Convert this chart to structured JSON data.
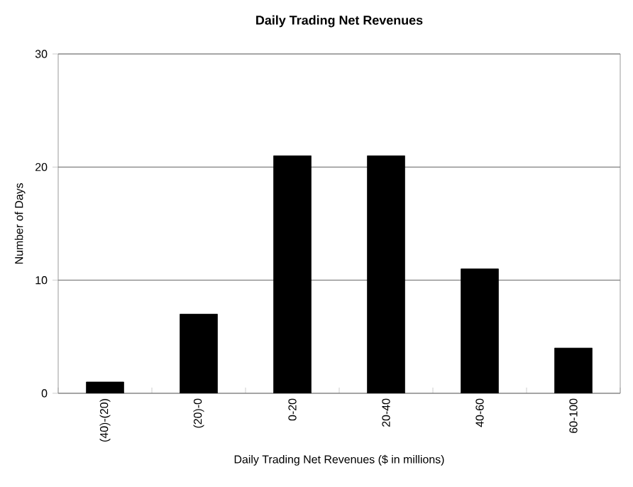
{
  "chart_data": {
    "type": "bar",
    "title": "Daily Trading Net Revenues",
    "xlabel": "Daily Trading Net Revenues ($ in millions)",
    "ylabel": "Number of Days",
    "categories": [
      "(40)-(20)",
      "(20)-0",
      "0-20",
      "20-40",
      "40-60",
      "60-100"
    ],
    "values": [
      1,
      7,
      21,
      21,
      11,
      4
    ],
    "color": "#000000",
    "ylim": [
      0,
      30
    ],
    "yticks": [
      0,
      10,
      20,
      30
    ],
    "grid": "y"
  }
}
